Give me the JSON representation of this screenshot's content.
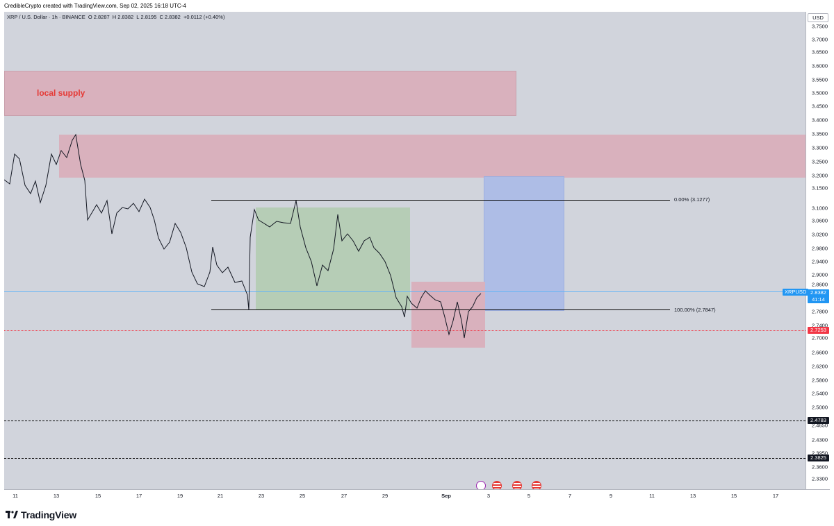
{
  "header": {
    "credit": "CredibleCrypto created with TradingView.com, Sep 02, 2025 16:18 UTC-4"
  },
  "symbol": {
    "name": "XRP / U.S. Dollar · 1h · BINANCE",
    "o_label": "O",
    "o": "2.8287",
    "h_label": "H",
    "h": "2.8382",
    "l_label": "L",
    "l": "2.8195",
    "c_label": "C",
    "c": "2.8382",
    "change": "+0.0112 (+0.40%)"
  },
  "zones": {
    "local_supply_label": "local supply"
  },
  "fib": {
    "top": "0.00% (3.1277)",
    "bottom": "100.00% (2.7847)"
  },
  "price_axis": {
    "currency": "USD",
    "ticks": [
      "3.7500",
      "3.7000",
      "3.6500",
      "3.6000",
      "3.5500",
      "3.5000",
      "3.4500",
      "3.4000",
      "3.3500",
      "3.3000",
      "3.2500",
      "3.2000",
      "3.1500",
      "3.1000",
      "3.0600",
      "3.0200",
      "2.9800",
      "2.9400",
      "2.9000",
      "2.8600",
      "2.8200",
      "2.7800",
      "2.7400",
      "2.7000",
      "2.6600",
      "2.6200",
      "2.5800",
      "2.5400",
      "2.5000",
      "2.4650",
      "2.4300",
      "2.3950",
      "2.3600",
      "2.3300"
    ],
    "current_price": "2.8382",
    "countdown": "41:14",
    "red_level": "2.7253",
    "level_1": "2.4783",
    "level_2": "2.3825",
    "symbol_tag": "XRPUSD"
  },
  "time_axis": {
    "labels": [
      "11",
      "13",
      "15",
      "17",
      "19",
      "21",
      "23",
      "25",
      "27",
      "29",
      "Sep",
      "3",
      "5",
      "7",
      "9",
      "11",
      "13",
      "15",
      "17"
    ]
  },
  "logo": {
    "text": "TradingView"
  },
  "colors": {
    "chart_bg": "#d1d4dc",
    "supply_zone": "#d9b1bd",
    "demand_green": "#b6cdb6",
    "target_blue": "#aebde6",
    "stop_pink": "#d9b1bd",
    "current_price": "#2196f3",
    "red_level": "#f23645"
  },
  "icons": [
    "tradingview-logo-icon",
    "us-flag-event-icon",
    "crypto-event-icon"
  ]
}
